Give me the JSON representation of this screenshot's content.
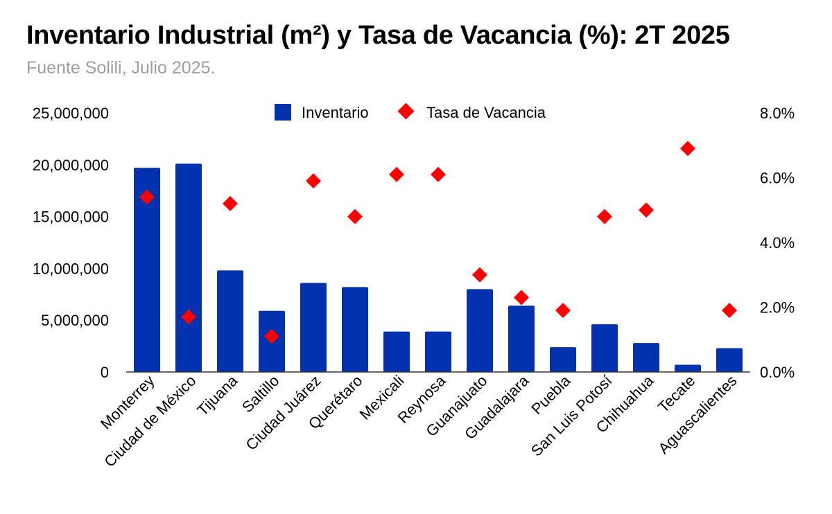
{
  "title": "Inventario Industrial (m²) y Tasa de Vacancia (%): 2T 2025",
  "subtitle": "Fuente Solili, Julio 2025.",
  "colors": {
    "bars": "#0232ad",
    "markers": "#ff0000",
    "text": "#000000",
    "subtitle": "#9e9e9e",
    "axis": "#333333"
  },
  "chart_data": {
    "type": "bar",
    "categories": [
      "Monterrey",
      "Ciudad de México",
      "Tijuana",
      "Saltillo",
      "Ciudad Juárez",
      "Querétaro",
      "Mexicali",
      "Reynosa",
      "Guanajuato",
      "Guadalajara",
      "Puebla",
      "San Luis Potosí",
      "Chihuahua",
      "Tecate",
      "Aguascalientes"
    ],
    "series": [
      {
        "name": "Inventario",
        "type": "bar",
        "axis": "left",
        "color": "#0232ad",
        "values": [
          19700000,
          20100000,
          9800000,
          5900000,
          8600000,
          8200000,
          3900000,
          3900000,
          8000000,
          6400000,
          2400000,
          4600000,
          2800000,
          700000,
          2300000
        ]
      },
      {
        "name": "Tasa de Vacancia",
        "type": "scatter",
        "marker": "diamond",
        "axis": "right",
        "color": "#ff0000",
        "values": [
          5.4,
          1.7,
          5.2,
          1.1,
          5.9,
          4.8,
          6.1,
          6.1,
          3.0,
          2.3,
          1.9,
          4.8,
          5.0,
          6.9,
          1.9
        ]
      }
    ],
    "y_left": {
      "range": [
        0,
        25000000
      ],
      "ticks": [
        "0",
        "5,000,000",
        "10,000,000",
        "15,000,000",
        "20,000,000",
        "25,000,000"
      ]
    },
    "y_right": {
      "range": [
        0,
        8
      ],
      "ticks": [
        "0.0%",
        "2.0%",
        "4.0%",
        "6.0%",
        "8.0%"
      ]
    },
    "grid": false,
    "legend": {
      "position": "top-center",
      "items": [
        "Inventario",
        "Tasa de Vacancia"
      ]
    }
  }
}
